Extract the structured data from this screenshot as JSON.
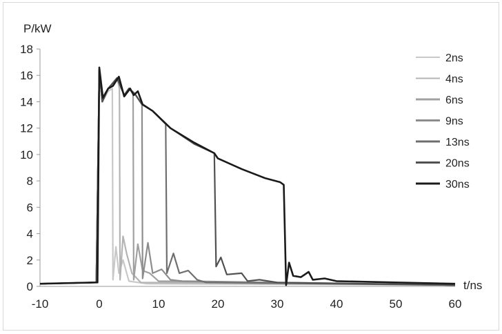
{
  "chart_data": {
    "type": "line",
    "title": "",
    "xlabel": "t/ns",
    "ylabel": "P/kW",
    "xlim": [
      -10,
      60
    ],
    "ylim": [
      0,
      18
    ],
    "xticks": [
      -10,
      0,
      10,
      20,
      30,
      40,
      50,
      60
    ],
    "yticks": [
      0,
      2,
      4,
      6,
      8,
      10,
      12,
      14,
      16,
      18
    ],
    "grid": false,
    "legend_position": "right",
    "series": [
      {
        "name": "2ns",
        "color": "#c8c8c8",
        "drop_t": 2.2,
        "points": [
          [
            -10,
            0.2
          ],
          [
            -0.5,
            0.3
          ],
          [
            0,
            16.4
          ],
          [
            0.5,
            14
          ],
          [
            1.5,
            14.8
          ],
          [
            2.2,
            15
          ],
          [
            2.3,
            0.5
          ],
          [
            2.8,
            3
          ],
          [
            3.3,
            1
          ],
          [
            4,
            2
          ],
          [
            5,
            0.4
          ],
          [
            8,
            0.2
          ],
          [
            60,
            0.1
          ]
        ]
      },
      {
        "name": "4ns",
        "color": "#b4b4b4",
        "drop_t": 3.4,
        "points": [
          [
            -10,
            0.2
          ],
          [
            -0.5,
            0.3
          ],
          [
            0,
            16.4
          ],
          [
            0.5,
            14
          ],
          [
            1.5,
            15
          ],
          [
            3,
            15.8
          ],
          [
            3.4,
            15
          ],
          [
            3.5,
            0.5
          ],
          [
            4,
            3.8
          ],
          [
            4.6,
            2.5
          ],
          [
            5.5,
            1
          ],
          [
            7,
            0.3
          ],
          [
            60,
            0.1
          ]
        ]
      },
      {
        "name": "6ns",
        "color": "#a0a0a0",
        "drop_t": 5.7,
        "points": [
          [
            -10,
            0.2
          ],
          [
            -0.5,
            0.3
          ],
          [
            0,
            16.4
          ],
          [
            0.5,
            14
          ],
          [
            1.5,
            15
          ],
          [
            3,
            15.8
          ],
          [
            4.2,
            14.5
          ],
          [
            5,
            15
          ],
          [
            5.7,
            14.6
          ],
          [
            5.8,
            0.5
          ],
          [
            6.5,
            3.2
          ],
          [
            7.3,
            1.2
          ],
          [
            8.5,
            1
          ],
          [
            10,
            0.4
          ],
          [
            60,
            0.1
          ]
        ]
      },
      {
        "name": "9ns",
        "color": "#8c8c8c",
        "drop_t": 7.2,
        "points": [
          [
            -10,
            0.2
          ],
          [
            -0.5,
            0.3
          ],
          [
            0,
            16.4
          ],
          [
            0.5,
            14
          ],
          [
            1.5,
            15
          ],
          [
            3,
            15.8
          ],
          [
            4.2,
            14.5
          ],
          [
            5,
            15
          ],
          [
            6,
            14.6
          ],
          [
            7.2,
            13.8
          ],
          [
            7.3,
            0.6
          ],
          [
            8.2,
            3.3
          ],
          [
            9,
            1
          ],
          [
            10.5,
            1.3
          ],
          [
            12,
            0.5
          ],
          [
            14,
            0.4
          ],
          [
            60,
            0.1
          ]
        ]
      },
      {
        "name": "13ns",
        "color": "#6e6e6e",
        "drop_t": 11.2,
        "points": [
          [
            -10,
            0.2
          ],
          [
            -0.5,
            0.3
          ],
          [
            0,
            16.4
          ],
          [
            0.5,
            14
          ],
          [
            1.5,
            15
          ],
          [
            3,
            15.8
          ],
          [
            4.2,
            14.5
          ],
          [
            5,
            15
          ],
          [
            6,
            14.6
          ],
          [
            7.2,
            13.8
          ],
          [
            9,
            13.3
          ],
          [
            11.2,
            12.3
          ],
          [
            11.4,
            1
          ],
          [
            12.5,
            2.5
          ],
          [
            13.5,
            1
          ],
          [
            15,
            1.2
          ],
          [
            16.5,
            0.5
          ],
          [
            18,
            0.3
          ],
          [
            60,
            0.1
          ]
        ]
      },
      {
        "name": "20ns",
        "color": "#505050",
        "drop_t": 19.4,
        "points": [
          [
            -10,
            0.2
          ],
          [
            -0.5,
            0.3
          ],
          [
            0,
            16.4
          ],
          [
            0.5,
            14
          ],
          [
            1.5,
            15
          ],
          [
            3,
            15.8
          ],
          [
            4.2,
            14.5
          ],
          [
            5,
            15
          ],
          [
            6,
            14.6
          ],
          [
            7.2,
            13.8
          ],
          [
            9,
            13.3
          ],
          [
            12,
            12
          ],
          [
            16,
            10.8
          ],
          [
            19.4,
            10.1
          ],
          [
            19.7,
            1.5
          ],
          [
            20.5,
            2.2
          ],
          [
            21.5,
            0.9
          ],
          [
            24,
            1
          ],
          [
            25,
            0.4
          ],
          [
            27,
            0.5
          ],
          [
            30,
            0.3
          ],
          [
            60,
            0.1
          ]
        ]
      },
      {
        "name": "30ns",
        "color": "#1a1a1a",
        "drop_t": 31.3,
        "points": [
          [
            -10,
            0.2
          ],
          [
            -0.5,
            0.3
          ],
          [
            -0.3,
            0.3
          ],
          [
            0,
            16.6
          ],
          [
            0.6,
            14.3
          ],
          [
            1.5,
            15
          ],
          [
            2.3,
            15.2
          ],
          [
            3.3,
            15.9
          ],
          [
            4.2,
            14.4
          ],
          [
            5.2,
            15
          ],
          [
            5.8,
            14.5
          ],
          [
            6.5,
            14.8
          ],
          [
            7.3,
            13.8
          ],
          [
            9,
            13.3
          ],
          [
            12,
            12
          ],
          [
            16,
            10.9
          ],
          [
            19.4,
            10.1
          ],
          [
            20,
            9.7
          ],
          [
            24,
            8.9
          ],
          [
            28,
            8.2
          ],
          [
            30.5,
            7.9
          ],
          [
            31.1,
            7.7
          ],
          [
            31.5,
            0.1
          ],
          [
            32,
            1.8
          ],
          [
            32.7,
            0.8
          ],
          [
            34,
            0.7
          ],
          [
            35.3,
            1.1
          ],
          [
            36,
            0.5
          ],
          [
            38,
            0.6
          ],
          [
            40,
            0.4
          ],
          [
            50,
            0.3
          ],
          [
            60,
            0.2
          ]
        ]
      }
    ]
  },
  "axes": {
    "ylabel": "P/kW",
    "xlabel": "t/ns",
    "xtick_labels": [
      "-10",
      "0",
      "10",
      "20",
      "30",
      "40",
      "50",
      "60"
    ],
    "ytick_labels": [
      "0",
      "2",
      "4",
      "6",
      "8",
      "10",
      "12",
      "14",
      "16",
      "18"
    ]
  },
  "legend": {
    "items": [
      {
        "label": "2ns",
        "color": "#c8c8c8"
      },
      {
        "label": "4ns",
        "color": "#b4b4b4"
      },
      {
        "label": "6ns",
        "color": "#a0a0a0"
      },
      {
        "label": "9ns",
        "color": "#8c8c8c"
      },
      {
        "label": "13ns",
        "color": "#6e6e6e"
      },
      {
        "label": "20ns",
        "color": "#505050"
      },
      {
        "label": "30ns",
        "color": "#1a1a1a"
      }
    ]
  }
}
